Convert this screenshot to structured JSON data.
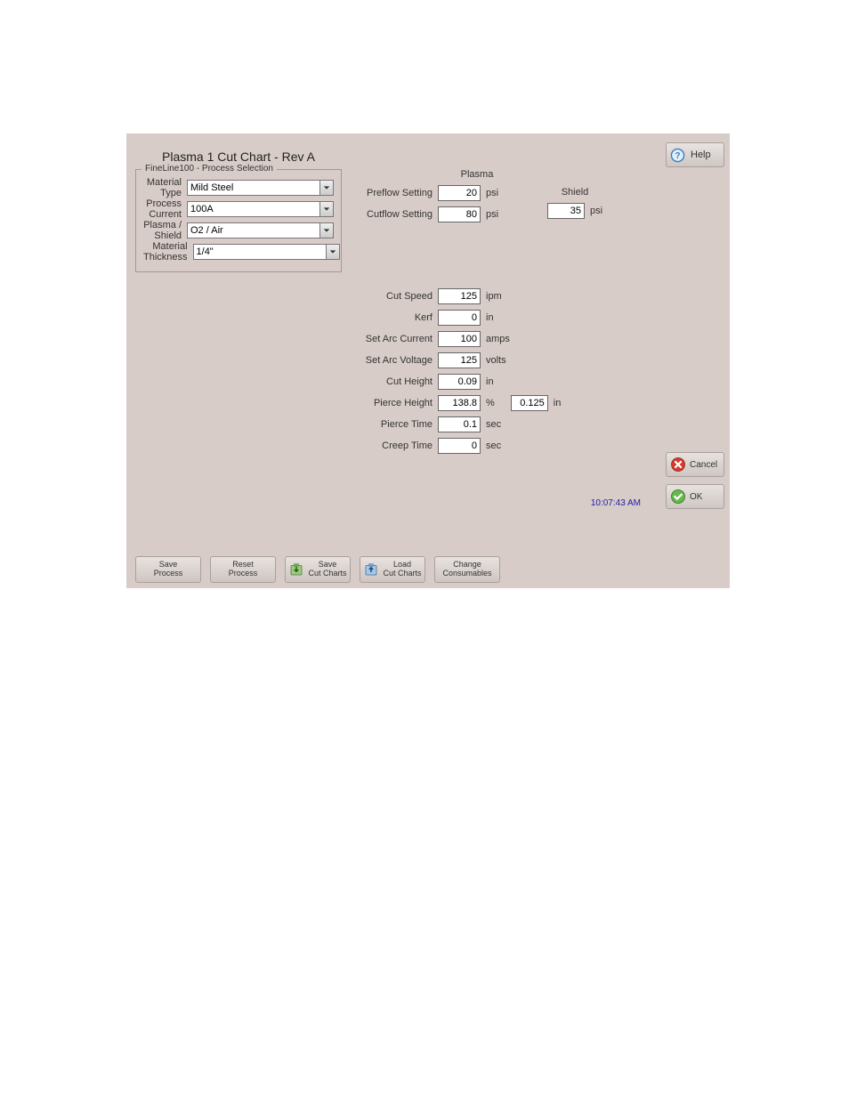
{
  "colors": {
    "panel_bg": "#d8ccc8",
    "button_top": "#e8e2df",
    "button_bottom": "#cfc6c2",
    "button_border": "#a9a09c",
    "fieldset_border": "#a29893",
    "timestamp_color": "#2020b0"
  },
  "title": "Plasma 1 Cut Chart - Rev A",
  "help_label": "Help",
  "process_selection": {
    "legend": "FineLine100 - Process Selection",
    "rows": {
      "material_type": {
        "label": "Material Type",
        "value": "Mild Steel"
      },
      "process_current": {
        "label": "Process Current",
        "value": "100A"
      },
      "plasma_shield": {
        "label": "Plasma / Shield",
        "value": "O2 / Air"
      },
      "material_thickness": {
        "label": "Material Thickness",
        "value": "1/4\""
      }
    }
  },
  "plasma": {
    "header": "Plasma",
    "preflow": {
      "label": "Preflow Setting",
      "value": "20",
      "unit": "psi"
    },
    "cutflow": {
      "label": "Cutflow Setting",
      "value": "80",
      "unit": "psi"
    }
  },
  "shield": {
    "header": "Shield",
    "value": "35",
    "unit": "psi"
  },
  "params": {
    "cut_speed": {
      "label": "Cut Speed",
      "value": "125",
      "unit": "ipm"
    },
    "kerf": {
      "label": "Kerf",
      "value": "0",
      "unit": "in"
    },
    "arc_current": {
      "label": "Set Arc Current",
      "value": "100",
      "unit": "amps"
    },
    "arc_voltage": {
      "label": "Set Arc Voltage",
      "value": "125",
      "unit": "volts"
    },
    "cut_height": {
      "label": "Cut Height",
      "value": "0.09",
      "unit": "in"
    },
    "pierce_height": {
      "label": "Pierce Height",
      "value": "138.8",
      "unit": "%",
      "extra_value": "0.125",
      "extra_unit": "in"
    },
    "pierce_time": {
      "label": "Pierce Time",
      "value": "0.1",
      "unit": "sec"
    },
    "creep_time": {
      "label": "Creep Time",
      "value": "0",
      "unit": "sec"
    }
  },
  "timestamp": "10:07:43 AM",
  "cancel_label": "Cancel",
  "ok_label": "OK",
  "bottom": {
    "save_process": "Save\nProcess",
    "reset_process": "Reset\nProcess",
    "save_cut_charts": "Save\nCut Charts",
    "load_cut_charts": "Load\nCut Charts",
    "change_consumables": "Change\nConsumables"
  }
}
